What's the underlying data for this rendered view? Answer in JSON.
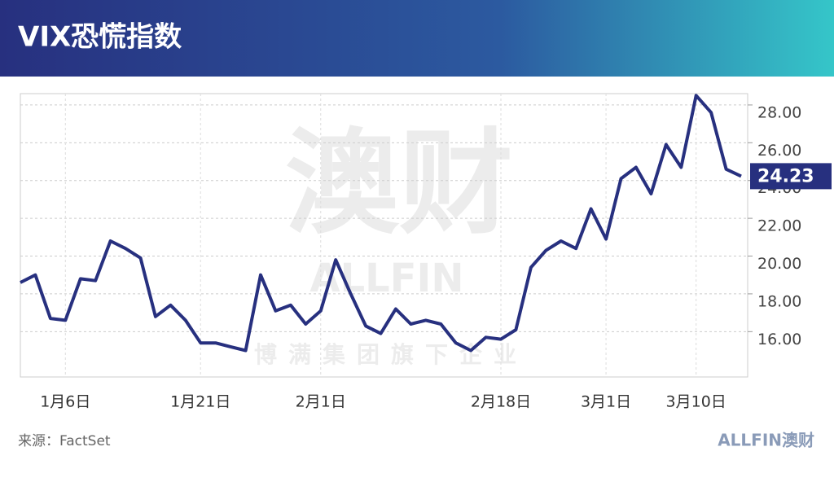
{
  "chart_data": {
    "type": "line",
    "title": "VIX恐慌指数",
    "source": "来源：FactSet",
    "logo": "ALLFIN澳财",
    "watermark": [
      "澳财",
      "ALLFIN",
      "博满集团旗下企业"
    ],
    "categories": [
      null,
      null,
      null,
      "1月6日",
      null,
      null,
      null,
      null,
      null,
      null,
      null,
      null,
      "1月21日",
      null,
      null,
      null,
      null,
      null,
      null,
      null,
      "2月1日",
      null,
      null,
      null,
      null,
      null,
      null,
      null,
      null,
      null,
      null,
      null,
      "2月18日",
      null,
      null,
      null,
      null,
      null,
      null,
      "3月1日",
      null,
      null,
      null,
      null,
      null,
      "3月10日",
      null,
      null,
      null
    ],
    "values": [
      18.6,
      19.0,
      16.7,
      16.6,
      18.8,
      18.7,
      20.8,
      20.4,
      19.9,
      16.8,
      17.4,
      16.6,
      15.4,
      15.4,
      15.2,
      15.0,
      19.0,
      17.1,
      17.4,
      16.4,
      17.1,
      19.8,
      18.0,
      16.3,
      15.9,
      17.2,
      16.4,
      16.6,
      16.4,
      15.4,
      15.0,
      15.7,
      15.6,
      16.1,
      19.4,
      20.3,
      20.8,
      20.4,
      22.5,
      20.9,
      24.1,
      24.7,
      23.3,
      25.9,
      24.7,
      28.5,
      27.6,
      24.6,
      24.23
    ],
    "color": "#27307f",
    "ylim": [
      13.6,
      28.6
    ],
    "yticks": [
      {
        "value": 16,
        "label": "16.00"
      },
      {
        "value": 18,
        "label": "18.00"
      },
      {
        "value": 20,
        "label": "20.00"
      },
      {
        "value": 22,
        "label": "22.00"
      },
      {
        "value": 24,
        "label": "24.00"
      },
      {
        "value": 26,
        "label": "26.00"
      },
      {
        "value": 28,
        "label": "28.00"
      }
    ],
    "grid": true
  }
}
